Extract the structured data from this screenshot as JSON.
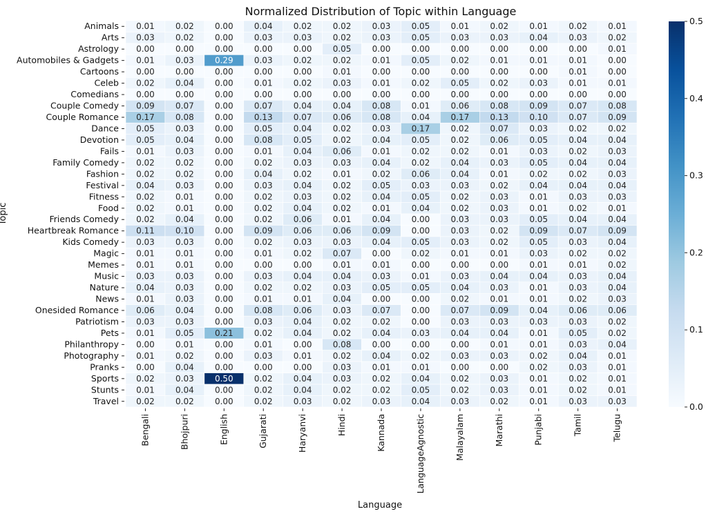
{
  "chart_data": {
    "type": "heatmap",
    "title": "Normalized Distribution of Topic within Language",
    "xlabel": "Language",
    "ylabel": "Topic",
    "colormap": "Blues",
    "vmin": 0.0,
    "vmax": 0.5,
    "colorbar_ticks": [
      "0.0",
      "0.1",
      "0.2",
      "0.3",
      "0.4",
      "0.5"
    ],
    "x": [
      "Bengali",
      "Bhojpuri",
      "English",
      "Gujarati",
      "Haryanvi",
      "Hindi",
      "Kannada",
      "LanguageAgnostic",
      "Malayalam",
      "Marathi",
      "Punjabi",
      "Tamil",
      "Telugu"
    ],
    "y": [
      "Animals",
      "Arts",
      "Astrology",
      "Automobiles & Gadgets",
      "Cartoons",
      "Celeb",
      "Comedians",
      "Couple Comedy",
      "Couple Romance",
      "Dance",
      "Devotion",
      "Fails",
      "Family Comedy",
      "Fashion",
      "Festival",
      "Fitness",
      "Food",
      "Friends Comedy",
      "Heartbreak Romance",
      "Kids Comedy",
      "Magic",
      "Memes",
      "Music",
      "Nature",
      "News",
      "Onesided Romance",
      "Patriotism",
      "Pets",
      "Philanthropy",
      "Photography",
      "Pranks",
      "Sports",
      "Stunts",
      "Travel"
    ],
    "values": [
      [
        0.01,
        0.02,
        0.0,
        0.04,
        0.02,
        0.02,
        0.03,
        0.05,
        0.01,
        0.02,
        0.01,
        0.02,
        0.01
      ],
      [
        0.03,
        0.02,
        0.0,
        0.03,
        0.03,
        0.02,
        0.03,
        0.05,
        0.03,
        0.03,
        0.04,
        0.03,
        0.02
      ],
      [
        0.0,
        0.0,
        0.0,
        0.0,
        0.0,
        0.05,
        0.0,
        0.0,
        0.0,
        0.0,
        0.0,
        0.0,
        0.01
      ],
      [
        0.01,
        0.03,
        0.29,
        0.03,
        0.02,
        0.02,
        0.01,
        0.05,
        0.02,
        0.01,
        0.01,
        0.01,
        0.0
      ],
      [
        0.0,
        0.0,
        0.0,
        0.0,
        0.0,
        0.01,
        0.0,
        0.0,
        0.0,
        0.0,
        0.0,
        0.01,
        0.0
      ],
      [
        0.02,
        0.04,
        0.0,
        0.01,
        0.02,
        0.03,
        0.01,
        0.02,
        0.05,
        0.02,
        0.03,
        0.01,
        0.01
      ],
      [
        0.0,
        0.0,
        0.0,
        0.0,
        0.0,
        0.0,
        0.0,
        0.0,
        0.0,
        0.0,
        0.0,
        0.0,
        0.0
      ],
      [
        0.09,
        0.07,
        0.0,
        0.07,
        0.04,
        0.04,
        0.08,
        0.01,
        0.06,
        0.08,
        0.09,
        0.07,
        0.08
      ],
      [
        0.17,
        0.08,
        0.0,
        0.13,
        0.07,
        0.06,
        0.08,
        0.04,
        0.17,
        0.13,
        0.1,
        0.07,
        0.09
      ],
      [
        0.05,
        0.03,
        0.0,
        0.05,
        0.04,
        0.02,
        0.03,
        0.17,
        0.02,
        0.07,
        0.03,
        0.02,
        0.02
      ],
      [
        0.05,
        0.04,
        0.0,
        0.08,
        0.05,
        0.02,
        0.04,
        0.05,
        0.02,
        0.06,
        0.05,
        0.04,
        0.04
      ],
      [
        0.01,
        0.03,
        0.0,
        0.01,
        0.04,
        0.06,
        0.01,
        0.02,
        0.02,
        0.01,
        0.03,
        0.02,
        0.03
      ],
      [
        0.02,
        0.02,
        0.0,
        0.02,
        0.03,
        0.03,
        0.04,
        0.02,
        0.04,
        0.03,
        0.05,
        0.04,
        0.04
      ],
      [
        0.02,
        0.02,
        0.0,
        0.04,
        0.02,
        0.01,
        0.02,
        0.06,
        0.04,
        0.01,
        0.02,
        0.02,
        0.03
      ],
      [
        0.04,
        0.03,
        0.0,
        0.03,
        0.04,
        0.02,
        0.05,
        0.03,
        0.03,
        0.02,
        0.04,
        0.04,
        0.04
      ],
      [
        0.02,
        0.01,
        0.0,
        0.02,
        0.03,
        0.02,
        0.04,
        0.05,
        0.02,
        0.03,
        0.01,
        0.03,
        0.03
      ],
      [
        0.02,
        0.01,
        0.0,
        0.02,
        0.04,
        0.02,
        0.01,
        0.04,
        0.02,
        0.03,
        0.01,
        0.02,
        0.01
      ],
      [
        0.02,
        0.04,
        0.0,
        0.02,
        0.06,
        0.01,
        0.04,
        0.0,
        0.03,
        0.03,
        0.05,
        0.04,
        0.04
      ],
      [
        0.11,
        0.1,
        0.0,
        0.09,
        0.06,
        0.06,
        0.09,
        0.0,
        0.03,
        0.02,
        0.09,
        0.07,
        0.09
      ],
      [
        0.03,
        0.03,
        0.0,
        0.02,
        0.03,
        0.03,
        0.04,
        0.05,
        0.03,
        0.02,
        0.05,
        0.03,
        0.04
      ],
      [
        0.01,
        0.01,
        0.0,
        0.01,
        0.02,
        0.07,
        0.0,
        0.02,
        0.01,
        0.01,
        0.03,
        0.02,
        0.02
      ],
      [
        0.01,
        0.01,
        0.0,
        0.0,
        0.0,
        0.01,
        0.01,
        0.0,
        0.0,
        0.0,
        0.01,
        0.01,
        0.02
      ],
      [
        0.03,
        0.03,
        0.0,
        0.03,
        0.04,
        0.04,
        0.03,
        0.01,
        0.03,
        0.04,
        0.04,
        0.03,
        0.04
      ],
      [
        0.04,
        0.03,
        0.0,
        0.02,
        0.02,
        0.03,
        0.05,
        0.05,
        0.04,
        0.03,
        0.01,
        0.03,
        0.04
      ],
      [
        0.01,
        0.03,
        0.0,
        0.01,
        0.01,
        0.04,
        0.0,
        0.0,
        0.02,
        0.01,
        0.01,
        0.02,
        0.03
      ],
      [
        0.06,
        0.04,
        0.0,
        0.08,
        0.06,
        0.03,
        0.07,
        0.0,
        0.07,
        0.09,
        0.04,
        0.06,
        0.06
      ],
      [
        0.03,
        0.03,
        0.0,
        0.03,
        0.04,
        0.02,
        0.02,
        0.0,
        0.03,
        0.03,
        0.03,
        0.03,
        0.02
      ],
      [
        0.01,
        0.05,
        0.21,
        0.02,
        0.04,
        0.02,
        0.04,
        0.03,
        0.04,
        0.04,
        0.01,
        0.05,
        0.02
      ],
      [
        0.0,
        0.01,
        0.0,
        0.01,
        0.0,
        0.08,
        0.0,
        0.0,
        0.0,
        0.01,
        0.01,
        0.03,
        0.04
      ],
      [
        0.01,
        0.02,
        0.0,
        0.03,
        0.01,
        0.02,
        0.04,
        0.02,
        0.03,
        0.03,
        0.02,
        0.04,
        0.01
      ],
      [
        0.0,
        0.04,
        0.0,
        0.0,
        0.0,
        0.03,
        0.01,
        0.01,
        0.0,
        0.0,
        0.02,
        0.03,
        0.01
      ],
      [
        0.02,
        0.03,
        0.5,
        0.02,
        0.04,
        0.03,
        0.02,
        0.04,
        0.02,
        0.03,
        0.01,
        0.02,
        0.01
      ],
      [
        0.01,
        0.04,
        0.0,
        0.02,
        0.04,
        0.02,
        0.02,
        0.05,
        0.02,
        0.03,
        0.01,
        0.02,
        0.01
      ],
      [
        0.02,
        0.02,
        0.0,
        0.02,
        0.03,
        0.02,
        0.03,
        0.04,
        0.03,
        0.02,
        0.01,
        0.03,
        0.03
      ]
    ],
    "annotation_format": "0.00"
  }
}
